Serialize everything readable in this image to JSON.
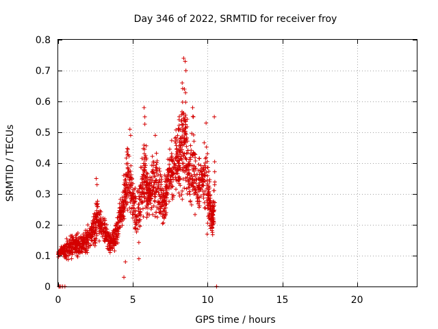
{
  "chart_data": {
    "type": "scatter",
    "title": "Day 346 of 2022, SRMTID for receiver froy",
    "xlabel": "GPS time / hours",
    "ylabel": "SRMTID / TECUs",
    "xlim": [
      0,
      24
    ],
    "ylim": [
      0,
      0.8
    ],
    "xticks": [
      "0",
      "5",
      "10",
      "15",
      "20"
    ],
    "xtick_values": [
      0,
      5,
      10,
      15,
      20
    ],
    "yticks": [
      "0",
      "0.1",
      "0.2",
      "0.3",
      "0.4",
      "0.5",
      "0.6",
      "0.7",
      "0.8"
    ],
    "ytick_values": [
      0,
      0.1,
      0.2,
      0.3,
      0.4,
      0.5,
      0.6,
      0.7,
      0.8
    ],
    "grid": true,
    "marker": "+",
    "color": "#d40000",
    "series": [
      {
        "name": "SRMTID",
        "envelope": [
          [
            0.0,
            0.09,
            0.12
          ],
          [
            0.3,
            0.1,
            0.14
          ],
          [
            0.6,
            0.06,
            0.17
          ],
          [
            0.9,
            0.08,
            0.19
          ],
          [
            1.2,
            0.09,
            0.18
          ],
          [
            1.5,
            0.08,
            0.18
          ],
          [
            1.8,
            0.1,
            0.2
          ],
          [
            2.1,
            0.1,
            0.21
          ],
          [
            2.4,
            0.12,
            0.25
          ],
          [
            2.6,
            0.12,
            0.34
          ],
          [
            2.9,
            0.13,
            0.26
          ],
          [
            3.2,
            0.1,
            0.25
          ],
          [
            3.5,
            0.09,
            0.2
          ],
          [
            3.8,
            0.11,
            0.2
          ],
          [
            4.1,
            0.14,
            0.28
          ],
          [
            4.3,
            0.18,
            0.33
          ],
          [
            4.5,
            0.2,
            0.44
          ],
          [
            4.7,
            0.22,
            0.5
          ],
          [
            5.0,
            0.2,
            0.36
          ],
          [
            5.3,
            0.1,
            0.35
          ],
          [
            5.6,
            0.17,
            0.45
          ],
          [
            5.8,
            0.18,
            0.57
          ],
          [
            6.0,
            0.2,
            0.38
          ],
          [
            6.2,
            0.22,
            0.42
          ],
          [
            6.5,
            0.18,
            0.5
          ],
          [
            6.8,
            0.17,
            0.42
          ],
          [
            7.1,
            0.17,
            0.37
          ],
          [
            7.3,
            0.22,
            0.44
          ],
          [
            7.6,
            0.25,
            0.5
          ],
          [
            7.9,
            0.28,
            0.54
          ],
          [
            8.1,
            0.25,
            0.6
          ],
          [
            8.3,
            0.25,
            0.68
          ],
          [
            8.5,
            0.27,
            0.74
          ],
          [
            8.7,
            0.24,
            0.5
          ],
          [
            9.0,
            0.2,
            0.59
          ],
          [
            9.3,
            0.2,
            0.45
          ],
          [
            9.6,
            0.23,
            0.44
          ],
          [
            9.9,
            0.16,
            0.54
          ],
          [
            10.1,
            0.15,
            0.4
          ],
          [
            10.3,
            0.14,
            0.27
          ],
          [
            10.5,
            0.16,
            0.44
          ]
        ],
        "low_points": [
          [
            0.05,
            0.0
          ],
          [
            0.1,
            0.0
          ],
          [
            0.18,
            0.0
          ],
          [
            0.3,
            0.0
          ],
          [
            0.45,
            0.0
          ],
          [
            4.4,
            0.03
          ],
          [
            4.5,
            0.08
          ],
          [
            5.4,
            0.09
          ],
          [
            10.6,
            0.0
          ]
        ],
        "high_points": [
          [
            4.8,
            0.51
          ],
          [
            4.85,
            0.49
          ],
          [
            5.75,
            0.58
          ],
          [
            5.8,
            0.55
          ],
          [
            6.5,
            0.49
          ],
          [
            8.4,
            0.74
          ],
          [
            8.5,
            0.73
          ],
          [
            8.55,
            0.7
          ],
          [
            8.3,
            0.66
          ],
          [
            8.45,
            0.64
          ],
          [
            9.9,
            0.53
          ],
          [
            10.45,
            0.55
          ],
          [
            9.0,
            0.58
          ],
          [
            9.05,
            0.55
          ],
          [
            2.55,
            0.35
          ],
          [
            2.6,
            0.33
          ]
        ]
      }
    ]
  }
}
